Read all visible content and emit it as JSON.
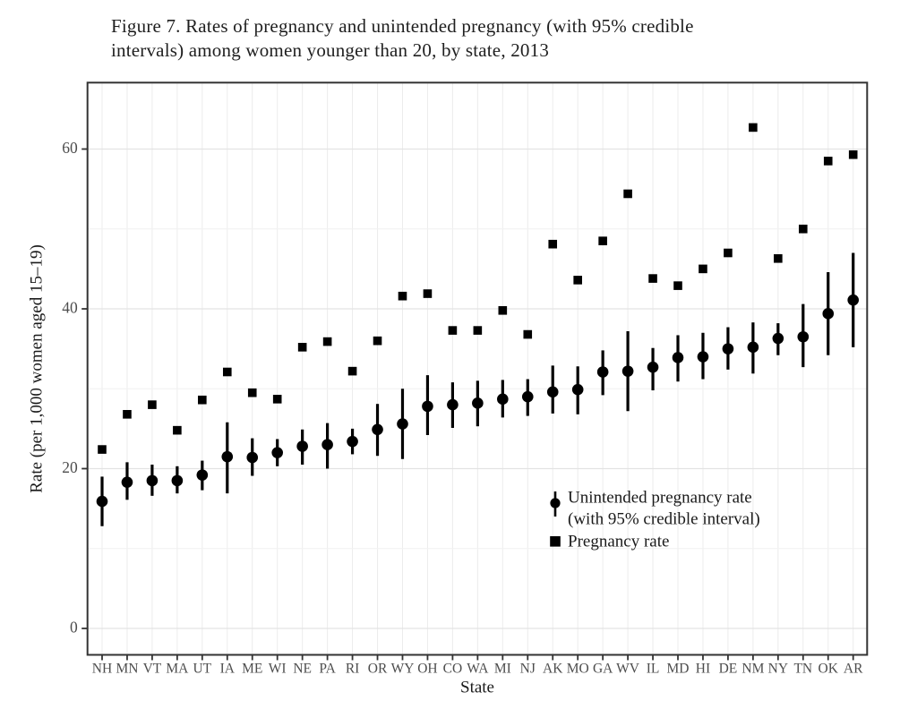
{
  "figure": {
    "title_line1": "Figure 7. Rates of pregnancy and unintended pregnancy (with 95% credible",
    "title_line2": "intervals) among women younger than 20, by state, 2013"
  },
  "axes": {
    "y_label": "Rate (per 1,000 women aged 15–19)",
    "x_label": "State",
    "y_tick_labels": [
      "0",
      "20",
      "40",
      "60"
    ]
  },
  "legend": {
    "item1_line1": "Unintended pregnancy rate",
    "item1_line2": "(with 95% credible interval)",
    "item1_icon": "pointrange-icon",
    "item2_label": "Pregnancy rate",
    "item2_icon": "filled-square-icon"
  },
  "colors": {
    "mark": "#000000",
    "panel_border": "#333333",
    "tick": "#333333",
    "grid_major": "#e3e3e3",
    "grid_minor": "#f1f1f1",
    "grid_vertical": "#ececec",
    "tick_label": "#4d4d4d",
    "axis_title": "#1a1a1a",
    "title": "#1f1f1f",
    "background": "#ffffff"
  },
  "chart_data": {
    "type": "scatter",
    "title": "Figure 7. Rates of pregnancy and unintended pregnancy (with 95% credible intervals) among women younger than 20, by state, 2013",
    "xlabel": "State",
    "ylabel": "Rate (per 1,000 women aged 15–19)",
    "ylim": [
      -3.4,
      68.3
    ],
    "y_major_ticks": [
      0,
      20,
      40,
      60
    ],
    "y_minor_gridlines": [
      10,
      30,
      50
    ],
    "grid": "major and minor horizontal gridlines plus one vertical gridline per state, light gray",
    "legend_position": "inside plot, center-right",
    "categories": [
      "NH",
      "MN",
      "VT",
      "MA",
      "UT",
      "IA",
      "ME",
      "WI",
      "NE",
      "PA",
      "RI",
      "OR",
      "WY",
      "OH",
      "CO",
      "WA",
      "MI",
      "NJ",
      "AK",
      "MO",
      "GA",
      "WV",
      "IL",
      "MD",
      "HI",
      "DE",
      "NM",
      "NY",
      "TN",
      "OK",
      "AR"
    ],
    "series": [
      {
        "name": "Pregnancy rate",
        "marker": "square",
        "values": [
          22.4,
          26.8,
          28.0,
          24.8,
          28.6,
          32.1,
          29.5,
          28.7,
          35.2,
          35.9,
          32.2,
          36.0,
          41.6,
          41.9,
          37.3,
          37.3,
          39.8,
          36.8,
          48.1,
          43.6,
          48.5,
          54.4,
          43.8,
          42.9,
          45.0,
          47.0,
          62.7,
          46.3,
          50.0,
          58.5,
          59.3
        ]
      },
      {
        "name": "Unintended pregnancy rate (with 95% credible interval)",
        "marker": "circle-with-interval",
        "values": [
          15.9,
          18.3,
          18.5,
          18.5,
          19.2,
          21.5,
          21.4,
          22.0,
          22.8,
          23.0,
          23.4,
          24.9,
          25.6,
          27.8,
          28.0,
          28.2,
          28.7,
          29.0,
          29.6,
          29.9,
          32.1,
          32.2,
          32.7,
          33.9,
          34.0,
          35.0,
          35.2,
          36.3,
          36.5,
          39.4,
          41.1
        ],
        "ci_low": [
          12.8,
          16.1,
          16.6,
          16.9,
          17.3,
          16.9,
          19.1,
          20.3,
          20.5,
          20.0,
          21.8,
          21.6,
          21.2,
          24.2,
          25.1,
          25.3,
          26.4,
          26.6,
          26.9,
          26.8,
          29.2,
          27.2,
          29.8,
          30.9,
          31.2,
          32.4,
          31.9,
          34.2,
          32.7,
          34.2,
          35.2
        ],
        "ci_high": [
          19.0,
          20.8,
          20.5,
          20.3,
          21.0,
          25.8,
          23.8,
          23.7,
          24.9,
          25.7,
          25.0,
          28.1,
          30.0,
          31.7,
          30.8,
          31.0,
          31.1,
          31.2,
          32.9,
          32.8,
          34.8,
          37.2,
          35.1,
          36.7,
          37.0,
          37.7,
          38.3,
          38.2,
          40.6,
          44.6,
          47.0
        ]
      }
    ]
  }
}
